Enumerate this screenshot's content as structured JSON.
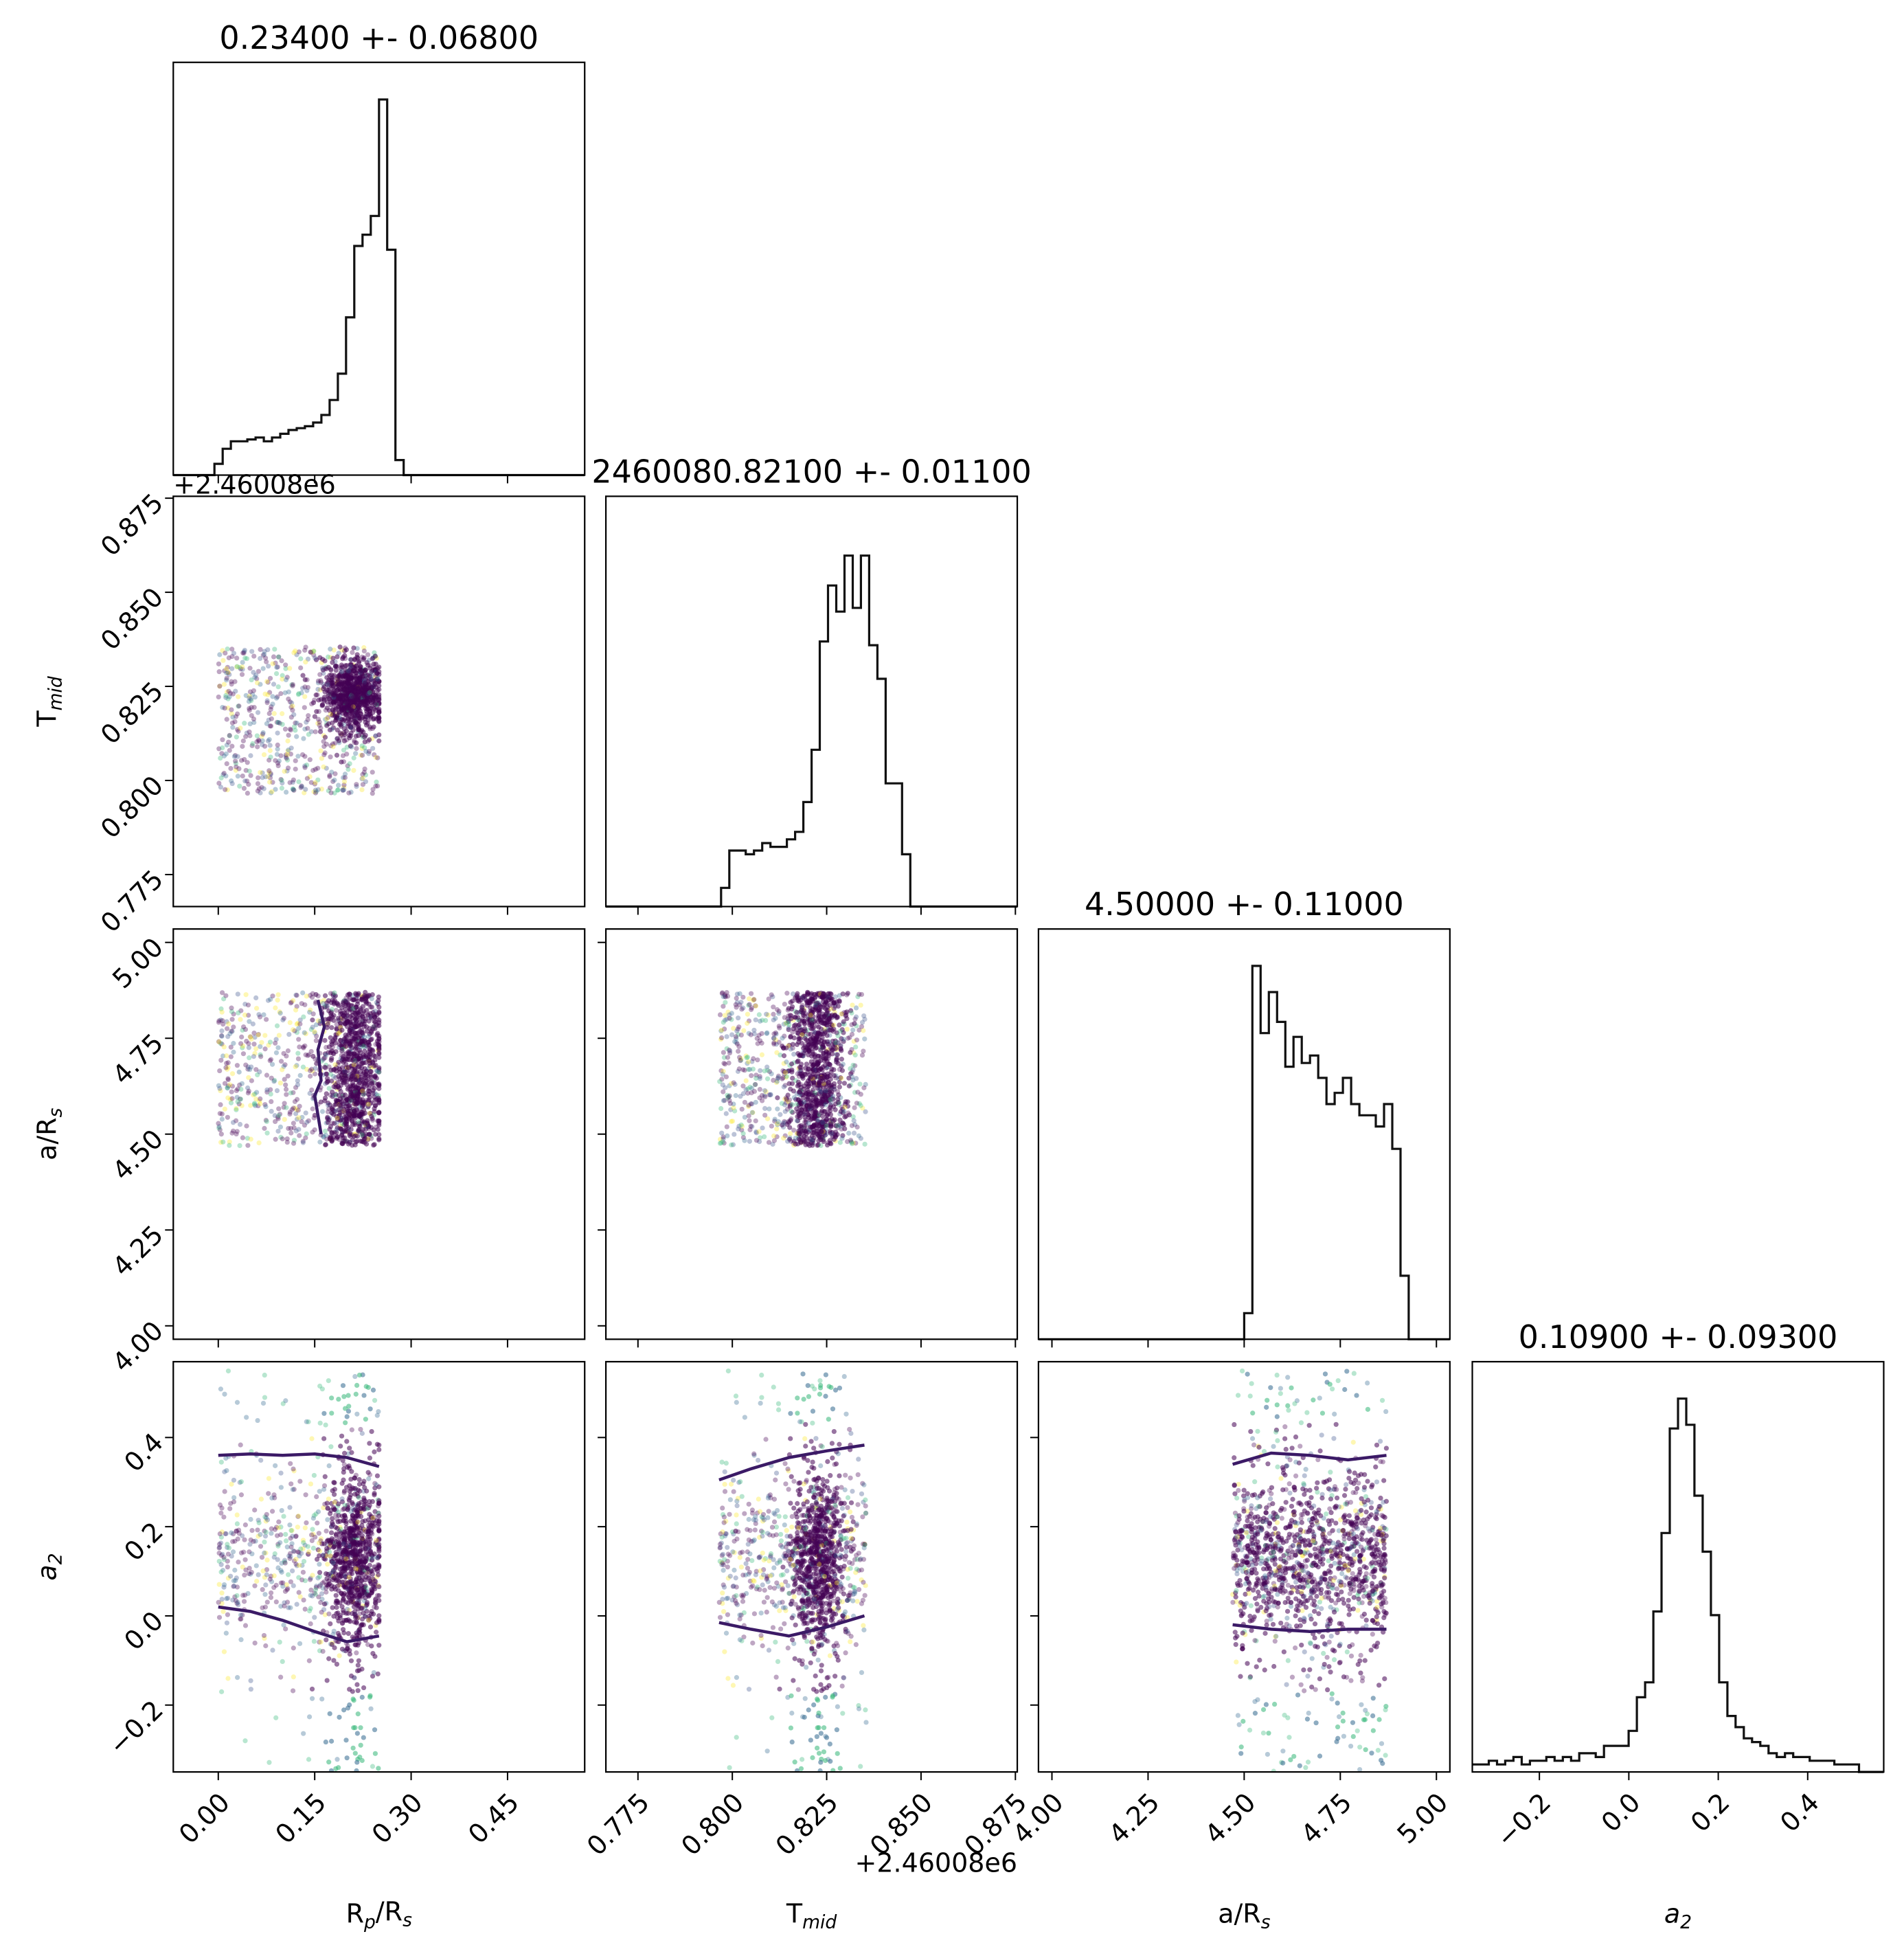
{
  "chart_data": {
    "type": "corner",
    "parameters": [
      {
        "label_main": "R",
        "label_sub": "p",
        "label_tail": "/R",
        "label_tail_sub": "s",
        "range": [
          -0.07,
          0.57
        ],
        "ticks": [
          "0.00",
          "0.15",
          "0.30",
          "0.45"
        ],
        "tick_values": [
          0.0,
          0.15,
          0.3,
          0.45
        ],
        "title": "0.23400 +- 0.06800"
      },
      {
        "label_main": "T",
        "label_sub": "mid",
        "label_tail": "",
        "label_tail_sub": "",
        "range": [
          0.7665,
          0.8755
        ],
        "ticks": [
          "0.775",
          "0.800",
          "0.825",
          "0.850",
          "0.875"
        ],
        "tick_values": [
          0.775,
          0.8,
          0.825,
          0.85,
          0.875
        ],
        "title": "2460080.82100 +- 0.01100",
        "offset": "+2.46008e6"
      },
      {
        "label_main": "a/R",
        "label_sub": "s",
        "label_tail": "",
        "label_tail_sub": "",
        "range": [
          3.965,
          5.035
        ],
        "ticks": [
          "4.00",
          "4.25",
          "4.50",
          "4.75",
          "5.00"
        ],
        "tick_values": [
          4.0,
          4.25,
          4.5,
          4.75,
          5.0
        ],
        "title": "4.50000 +- 0.11000"
      },
      {
        "label_main": "a",
        "label_sub": "2",
        "label_tail": "",
        "label_tail_sub": "",
        "italic": true,
        "range": [
          -0.35,
          0.57
        ],
        "ticks": [
          "−0.2",
          "0.0",
          "0.2",
          "0.4"
        ],
        "tick_values": [
          -0.2,
          0.0,
          0.2,
          0.4
        ],
        "title": "0.10900 +- 0.09300"
      }
    ],
    "offset_label_left": "+2.46008e6",
    "offset_label_bottom": "+2.46008e6",
    "histograms": [
      {
        "param": 0,
        "bin_start": -0.07,
        "bin_width": 0.0128,
        "counts": [
          0,
          0,
          0,
          0,
          0,
          0.03,
          0.07,
          0.09,
          0.09,
          0.095,
          0.1,
          0.09,
          0.1,
          0.11,
          0.12,
          0.125,
          0.13,
          0.14,
          0.16,
          0.2,
          0.27,
          0.42,
          0.61,
          0.64,
          0.69,
          1.0,
          0.6,
          0.04,
          0,
          0,
          0,
          0,
          0,
          0,
          0,
          0,
          0,
          0,
          0,
          0,
          0,
          0,
          0,
          0,
          0,
          0,
          0,
          0,
          0,
          0
        ]
      },
      {
        "param": 1,
        "bin_start": 0.7665,
        "bin_width": 0.00218,
        "counts": [
          0,
          0,
          0,
          0,
          0,
          0,
          0,
          0,
          0,
          0,
          0,
          0,
          0,
          0,
          0.05,
          0.15,
          0.15,
          0.14,
          0.15,
          0.17,
          0.16,
          0.16,
          0.18,
          0.2,
          0.28,
          0.42,
          0.71,
          0.86,
          0.79,
          0.94,
          0.8,
          0.94,
          0.7,
          0.61,
          0.33,
          0.33,
          0.14,
          0,
          0,
          0,
          0,
          0,
          0,
          0,
          0,
          0,
          0,
          0,
          0,
          0
        ]
      },
      {
        "param": 2,
        "bin_start": 3.965,
        "bin_width": 0.0214,
        "counts": [
          0,
          0,
          0,
          0,
          0,
          0,
          0,
          0,
          0,
          0,
          0,
          0,
          0,
          0,
          0,
          0,
          0,
          0,
          0,
          0,
          0,
          0,
          0,
          0,
          0,
          0.07,
          1.0,
          0.82,
          0.93,
          0.85,
          0.73,
          0.81,
          0.74,
          0.76,
          0.7,
          0.63,
          0.66,
          0.7,
          0.63,
          0.6,
          0.6,
          0.57,
          0.63,
          0.51,
          0.17,
          0,
          0,
          0,
          0,
          0
        ]
      },
      {
        "param": 3,
        "bin_start": -0.35,
        "bin_width": 0.0184,
        "counts": [
          0.02,
          0.02,
          0.03,
          0.02,
          0.03,
          0.04,
          0.02,
          0.03,
          0.03,
          0.04,
          0.03,
          0.04,
          0.03,
          0.05,
          0.05,
          0.04,
          0.07,
          0.07,
          0.07,
          0.11,
          0.2,
          0.24,
          0.43,
          0.64,
          0.92,
          1.0,
          0.93,
          0.74,
          0.59,
          0.42,
          0.24,
          0.15,
          0.12,
          0.09,
          0.08,
          0.07,
          0.05,
          0.04,
          0.05,
          0.04,
          0.04,
          0.03,
          0.03,
          0.03,
          0.02,
          0.02,
          0.02,
          0,
          0,
          0
        ]
      }
    ],
    "scatter_summary": {
      "Rp_Rs": {
        "min": 0.0,
        "max": 0.25,
        "concentration": 0.21
      },
      "T_mid": {
        "min": 0.7965,
        "max": 0.8355,
        "concentration": 0.8225
      },
      "a_Rs": {
        "min": 4.47,
        "max": 4.87
      },
      "a2": {
        "min": -0.35,
        "max": 0.55,
        "concentration": 0.13
      }
    },
    "contours": [
      {
        "panel": "a_Rs_vs_Rp",
        "x": [
          0.155,
          0.165,
          0.155,
          0.16,
          0.15,
          0.16
        ],
        "y": [
          4.85,
          4.78,
          4.72,
          4.64,
          4.6,
          4.5
        ]
      },
      {
        "panel": "a2_vs_Rp_upper",
        "x": [
          0.0,
          0.05,
          0.1,
          0.15,
          0.2,
          0.25
        ],
        "y": [
          0.36,
          0.363,
          0.36,
          0.363,
          0.355,
          0.335
        ]
      },
      {
        "panel": "a2_vs_Rp_lower",
        "x": [
          0.0,
          0.05,
          0.1,
          0.15,
          0.2,
          0.25
        ],
        "y": [
          0.02,
          0.01,
          -0.01,
          -0.035,
          -0.058,
          -0.045
        ]
      },
      {
        "panel": "a2_vs_T_upper",
        "x": [
          0.7965,
          0.805,
          0.815,
          0.825,
          0.835
        ],
        "y": [
          0.305,
          0.33,
          0.355,
          0.37,
          0.383
        ]
      },
      {
        "panel": "a2_vs_T_lower",
        "x": [
          0.7965,
          0.805,
          0.815,
          0.825,
          0.835
        ],
        "y": [
          -0.015,
          -0.03,
          -0.045,
          -0.025,
          0.0
        ]
      },
      {
        "panel": "a2_vs_a_upper",
        "x": [
          4.47,
          4.57,
          4.67,
          4.77,
          4.87
        ],
        "y": [
          0.34,
          0.365,
          0.36,
          0.35,
          0.36
        ]
      },
      {
        "panel": "a2_vs_a_lower",
        "x": [
          4.47,
          4.57,
          4.67,
          4.77,
          4.87
        ],
        "y": [
          -0.02,
          -0.03,
          -0.035,
          -0.03,
          -0.03
        ]
      }
    ],
    "colors": {
      "hist": "#111111",
      "contour": "#3b1a66",
      "dense": "#440154",
      "mid": "#31688e",
      "light": "#35b779",
      "yellow": "#fde725"
    }
  }
}
